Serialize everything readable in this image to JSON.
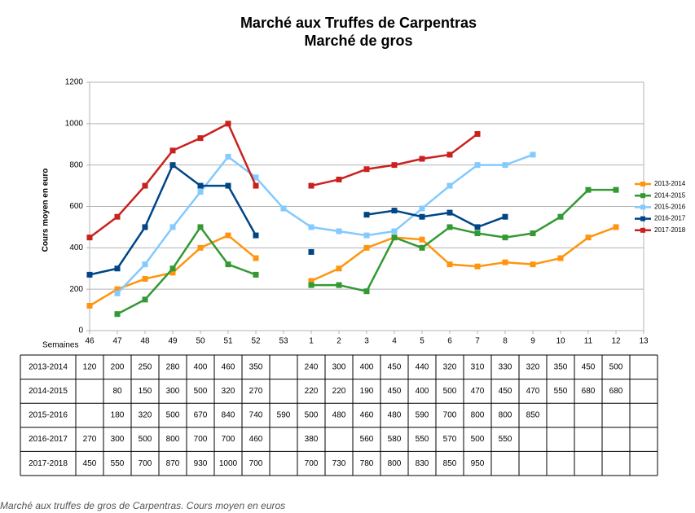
{
  "chart_data": {
    "type": "line",
    "title": "Marché aux Truffes de Carpentras",
    "subtitle": "Marché de gros",
    "y_label": "Cours moyen en euro",
    "x_label": "Semaines",
    "caption": "Marché aux truffes de gros de Carpentras. Cours moyen en euros",
    "categories": [
      "46",
      "47",
      "48",
      "49",
      "50",
      "51",
      "52",
      "53",
      "1",
      "2",
      "3",
      "4",
      "5",
      "6",
      "7",
      "8",
      "9",
      "10",
      "11",
      "12",
      "13"
    ],
    "ylim": [
      0,
      1200
    ],
    "yticks": [
      0,
      200,
      400,
      600,
      800,
      1000,
      1200
    ],
    "grid": true,
    "legend": "right",
    "series": [
      {
        "name": "2013-2014",
        "color": "#ff950e",
        "values": [
          120,
          200,
          250,
          280,
          400,
          460,
          350,
          null,
          240,
          300,
          400,
          450,
          440,
          320,
          310,
          330,
          320,
          350,
          450,
          500,
          null
        ]
      },
      {
        "name": "2014-2015",
        "color": "#339933",
        "values": [
          null,
          80,
          150,
          300,
          500,
          320,
          270,
          null,
          220,
          220,
          190,
          450,
          400,
          500,
          470,
          450,
          470,
          550,
          680,
          680,
          null
        ]
      },
      {
        "name": "2015-2016",
        "color": "#83caff",
        "values": [
          null,
          180,
          320,
          500,
          670,
          840,
          740,
          590,
          500,
          480,
          460,
          480,
          590,
          700,
          800,
          800,
          850,
          null,
          null,
          null,
          null
        ]
      },
      {
        "name": "2016-2017",
        "color": "#004586",
        "values": [
          270,
          300,
          500,
          800,
          700,
          700,
          460,
          null,
          380,
          null,
          560,
          580,
          550,
          570,
          500,
          550,
          null,
          null,
          null,
          null,
          null
        ]
      },
      {
        "name": "2017-2018",
        "color": "#c9211e",
        "values": [
          450,
          550,
          700,
          870,
          930,
          1000,
          700,
          null,
          700,
          730,
          780,
          800,
          830,
          850,
          950,
          null,
          null,
          null,
          null,
          null,
          null
        ]
      }
    ]
  }
}
